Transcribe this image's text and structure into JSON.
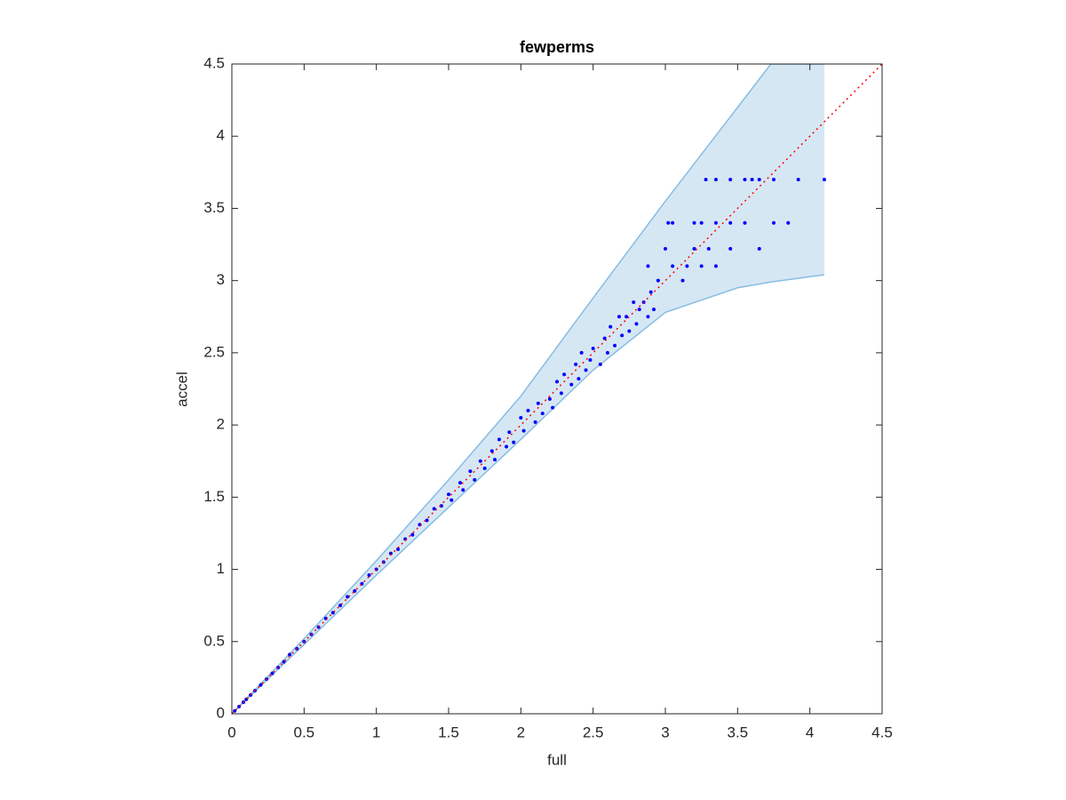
{
  "chart_data": {
    "type": "scatter",
    "title": "fewperms",
    "x_label": "full",
    "y_label": "accel",
    "xlim": [
      0,
      4.5
    ],
    "ylim": [
      0,
      4.5
    ],
    "xticks": [
      0,
      0.5,
      1,
      1.5,
      2,
      2.5,
      3,
      3.5,
      4,
      4.5
    ],
    "yticks": [
      0,
      0.5,
      1,
      1.5,
      2,
      2.5,
      3,
      3.5,
      4,
      4.5
    ],
    "band": {
      "color": "#d6e7f4",
      "edge_color": "#86bde3",
      "x": [
        0,
        0.5,
        1,
        1.5,
        2,
        2.5,
        3,
        3.5,
        3.73,
        4.1
      ],
      "upper": [
        0,
        0.52,
        1.06,
        1.62,
        2.2,
        2.88,
        3.55,
        4.2,
        4.5,
        4.5
      ],
      "lower": [
        0,
        0.48,
        0.96,
        1.43,
        1.9,
        2.38,
        2.78,
        2.95,
        2.99,
        3.04
      ]
    },
    "reference_line": {
      "color": "#ff0000",
      "x": [
        0,
        4.5
      ],
      "y": [
        0,
        4.5
      ]
    },
    "scatter": {
      "color": "#0000ff",
      "x": [
        0.02,
        0.05,
        0.08,
        0.1,
        0.13,
        0.16,
        0.2,
        0.24,
        0.28,
        0.32,
        0.36,
        0.4,
        0.45,
        0.5,
        0.55,
        0.6,
        0.65,
        0.7,
        0.75,
        0.8,
        0.85,
        0.9,
        0.95,
        1.0,
        1.05,
        1.1,
        1.15,
        1.2,
        1.25,
        1.3,
        1.35,
        1.4,
        1.45,
        1.5,
        1.52,
        1.58,
        1.6,
        1.65,
        1.68,
        1.72,
        1.75,
        1.8,
        1.82,
        1.85,
        1.9,
        1.92,
        1.95,
        2.0,
        2.02,
        2.05,
        2.1,
        2.12,
        2.15,
        2.2,
        2.22,
        2.25,
        2.28,
        2.3,
        2.35,
        2.38,
        2.4,
        2.42,
        2.45,
        2.48,
        2.5,
        2.55,
        2.58,
        2.6,
        2.62,
        2.65,
        2.68,
        2.7,
        2.73,
        2.75,
        2.78,
        2.8,
        2.82,
        2.85,
        2.88,
        2.9,
        2.92,
        2.95,
        2.88,
        3.0,
        3.05,
        3.12,
        3.15,
        3.2,
        3.25,
        3.35,
        3.3,
        3.45,
        3.65,
        3.02,
        3.05,
        3.2,
        3.25,
        3.35,
        3.45,
        3.55,
        3.75,
        3.85,
        3.28,
        3.35,
        3.45,
        3.55,
        3.6,
        3.65,
        3.75,
        3.92,
        4.1
      ],
      "y": [
        0.02,
        0.05,
        0.08,
        0.1,
        0.13,
        0.16,
        0.2,
        0.24,
        0.28,
        0.32,
        0.36,
        0.41,
        0.45,
        0.5,
        0.55,
        0.6,
        0.66,
        0.7,
        0.75,
        0.81,
        0.85,
        0.9,
        0.96,
        1.0,
        1.05,
        1.11,
        1.14,
        1.21,
        1.24,
        1.31,
        1.34,
        1.42,
        1.44,
        1.52,
        1.48,
        1.6,
        1.55,
        1.68,
        1.62,
        1.75,
        1.7,
        1.82,
        1.76,
        1.9,
        1.85,
        1.95,
        1.88,
        2.05,
        1.96,
        2.1,
        2.02,
        2.15,
        2.08,
        2.18,
        2.12,
        2.3,
        2.22,
        2.35,
        2.28,
        2.42,
        2.32,
        2.5,
        2.38,
        2.45,
        2.53,
        2.42,
        2.6,
        2.5,
        2.68,
        2.55,
        2.75,
        2.62,
        2.75,
        2.65,
        2.85,
        2.7,
        2.8,
        2.85,
        2.75,
        2.92,
        2.8,
        3.0,
        3.1,
        3.22,
        3.1,
        3.0,
        3.1,
        3.22,
        3.1,
        3.1,
        3.22,
        3.22,
        3.22,
        3.4,
        3.4,
        3.4,
        3.4,
        3.4,
        3.4,
        3.4,
        3.4,
        3.4,
        3.7,
        3.7,
        3.7,
        3.7,
        3.7,
        3.7,
        3.7,
        3.7,
        3.7
      ]
    }
  }
}
